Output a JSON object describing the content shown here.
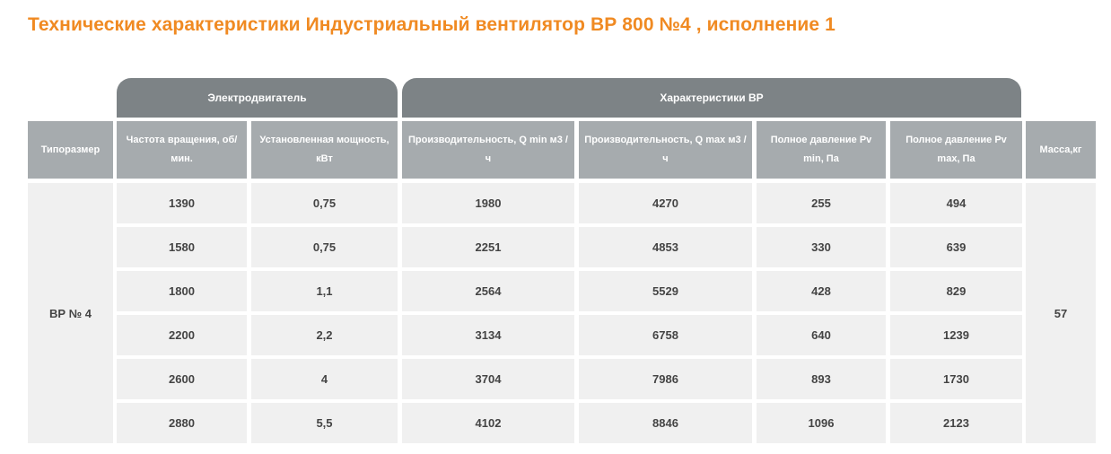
{
  "title": "Технические характеристики Индустриальный вентилятор ВР 800 №4 , исполнение 1",
  "groups": {
    "motor": "Электродвигатель",
    "characteristics": "Характеристики ВР"
  },
  "columns": [
    "Типоразмер",
    "Частота вращения, об/мин.",
    "Установленная мощность, кВт",
    "Производительность, Q min м3 /ч",
    "Производительность, Q max м3 /ч",
    "Полное давление Pv min, Па",
    "Полное давление Pv max, Па",
    "Масса,кг"
  ],
  "model": "ВР  № 4",
  "mass": "57",
  "rows": [
    [
      "1390",
      "0,75",
      "1980",
      "4270",
      "255",
      "494"
    ],
    [
      "1580",
      "0,75",
      "2251",
      "4853",
      "330",
      "639"
    ],
    [
      "1800",
      "1,1",
      "2564",
      "5529",
      "428",
      "829"
    ],
    [
      "2200",
      "2,2",
      "3134",
      "6758",
      "640",
      "1239"
    ],
    [
      "2600",
      "4",
      "3704",
      "7986",
      "893",
      "1730"
    ],
    [
      "2880",
      "5,5",
      "4102",
      "8846",
      "1096",
      "2123"
    ]
  ]
}
